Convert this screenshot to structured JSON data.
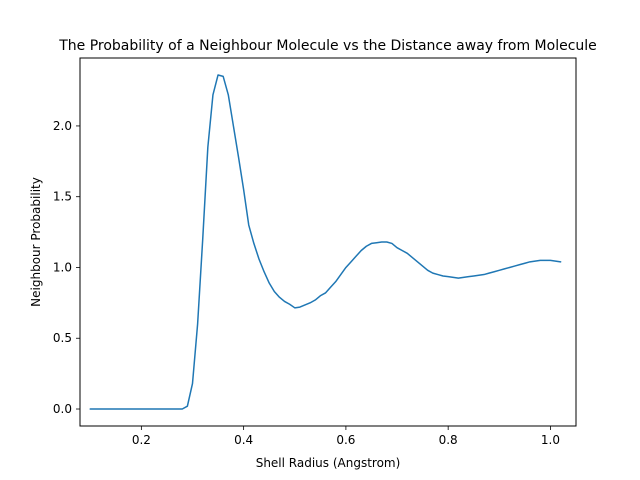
{
  "chart_data": {
    "type": "line",
    "title": "The Probability of a Neighbour Molecule vs the Distance away from Molecule",
    "xlabel": "Shell Radius (Angstrom)",
    "ylabel": "Neighbour Probability",
    "xlim": [
      0.08,
      1.05
    ],
    "ylim": [
      -0.12,
      2.48
    ],
    "xticks": [
      0.2,
      0.4,
      0.6,
      0.8,
      1.0
    ],
    "xtick_labels": [
      "0.2",
      "0.4",
      "0.6",
      "0.8",
      "1.0"
    ],
    "yticks": [
      0.0,
      0.5,
      1.0,
      1.5,
      2.0
    ],
    "ytick_labels": [
      "0.0",
      "0.5",
      "1.0",
      "1.5",
      "2.0"
    ],
    "grid": false,
    "legend": "none",
    "series": [
      {
        "color": "#1f77b4",
        "x": [
          0.1,
          0.12,
          0.14,
          0.16,
          0.18,
          0.2,
          0.22,
          0.24,
          0.26,
          0.27,
          0.28,
          0.29,
          0.3,
          0.31,
          0.32,
          0.33,
          0.34,
          0.35,
          0.36,
          0.37,
          0.38,
          0.39,
          0.4,
          0.41,
          0.42,
          0.43,
          0.44,
          0.45,
          0.46,
          0.47,
          0.48,
          0.49,
          0.5,
          0.51,
          0.52,
          0.53,
          0.54,
          0.55,
          0.56,
          0.57,
          0.58,
          0.59,
          0.6,
          0.61,
          0.62,
          0.63,
          0.64,
          0.65,
          0.66,
          0.67,
          0.68,
          0.69,
          0.7,
          0.71,
          0.72,
          0.73,
          0.74,
          0.75,
          0.76,
          0.77,
          0.78,
          0.79,
          0.8,
          0.81,
          0.82,
          0.83,
          0.84,
          0.85,
          0.86,
          0.87,
          0.88,
          0.89,
          0.9,
          0.91,
          0.92,
          0.93,
          0.94,
          0.95,
          0.96,
          0.97,
          0.98,
          0.99,
          1.0,
          1.01,
          1.02
        ],
        "y": [
          0.0,
          0.0,
          0.0,
          0.0,
          0.0,
          0.0,
          0.0,
          0.0,
          0.0,
          0.0,
          0.0,
          0.02,
          0.18,
          0.6,
          1.2,
          1.85,
          2.22,
          2.36,
          2.35,
          2.22,
          2.0,
          1.78,
          1.55,
          1.3,
          1.17,
          1.06,
          0.97,
          0.89,
          0.83,
          0.79,
          0.76,
          0.74,
          0.715,
          0.72,
          0.735,
          0.75,
          0.77,
          0.8,
          0.82,
          0.86,
          0.9,
          0.95,
          1.0,
          1.04,
          1.08,
          1.12,
          1.15,
          1.17,
          1.175,
          1.18,
          1.18,
          1.17,
          1.14,
          1.12,
          1.1,
          1.07,
          1.04,
          1.01,
          0.98,
          0.96,
          0.95,
          0.94,
          0.935,
          0.93,
          0.925,
          0.93,
          0.935,
          0.94,
          0.945,
          0.95,
          0.96,
          0.97,
          0.98,
          0.99,
          1.0,
          1.01,
          1.02,
          1.03,
          1.04,
          1.045,
          1.05,
          1.05,
          1.05,
          1.045,
          1.04
        ]
      }
    ]
  }
}
